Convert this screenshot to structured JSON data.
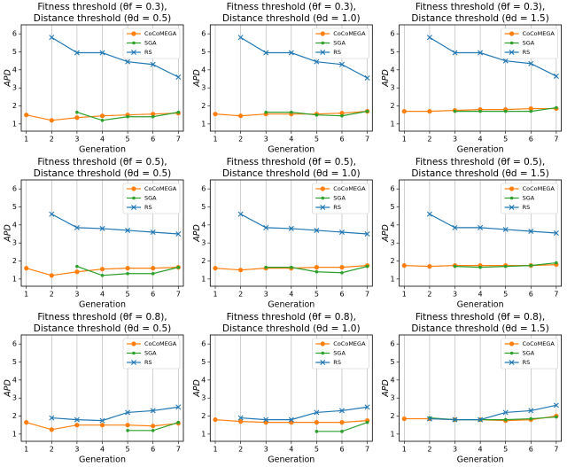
{
  "chart_data": [
    {
      "type": "line",
      "title": "Fitness threshold (θf = 0.3),",
      "subtitle": "Distance threshold (θd = 0.5)",
      "xlabel": "Generation",
      "ylabel": "APD",
      "x": [
        1,
        2,
        3,
        4,
        5,
        6,
        7
      ],
      "xlim": [
        0.8,
        7.2
      ],
      "xticks": [
        1,
        2,
        3,
        4,
        5,
        6,
        7
      ],
      "ylim": [
        0.6,
        6.5
      ],
      "yticks": [
        1,
        2,
        3,
        4,
        5,
        6
      ],
      "grid": "x",
      "legend": "upper right",
      "series": [
        {
          "name": "CoCoMEGA",
          "color": "#ff7f0e",
          "marker": "o",
          "values": [
            1.5,
            1.2,
            1.35,
            1.45,
            1.5,
            1.55,
            1.6
          ]
        },
        {
          "name": "SGA",
          "color": "#2ca02c",
          "marker": ".",
          "values": [
            null,
            null,
            1.65,
            1.2,
            1.4,
            1.4,
            1.65
          ]
        },
        {
          "name": "RS",
          "color": "#1f77b4",
          "marker": "x",
          "values": [
            null,
            5.8,
            4.95,
            4.95,
            4.45,
            4.3,
            3.6
          ]
        }
      ]
    },
    {
      "type": "line",
      "title": "Fitness threshold (θf = 0.3),",
      "subtitle": "Distance threshold (θd = 1.0)",
      "xlabel": "Generation",
      "ylabel": "APD",
      "x": [
        1,
        2,
        3,
        4,
        5,
        6,
        7
      ],
      "xlim": [
        0.8,
        7.2
      ],
      "xticks": [
        1,
        2,
        3,
        4,
        5,
        6,
        7
      ],
      "ylim": [
        0.6,
        6.5
      ],
      "yticks": [
        1,
        2,
        3,
        4,
        5,
        6
      ],
      "grid": "x",
      "legend": "upper right",
      "series": [
        {
          "name": "CoCoMEGA",
          "color": "#ff7f0e",
          "marker": "o",
          "values": [
            1.55,
            1.45,
            1.55,
            1.55,
            1.55,
            1.6,
            1.7
          ]
        },
        {
          "name": "SGA",
          "color": "#2ca02c",
          "marker": ".",
          "values": [
            null,
            null,
            1.65,
            1.65,
            1.5,
            1.45,
            1.7
          ]
        },
        {
          "name": "RS",
          "color": "#1f77b4",
          "marker": "x",
          "values": [
            null,
            5.8,
            4.95,
            4.95,
            4.45,
            4.3,
            3.55
          ]
        }
      ]
    },
    {
      "type": "line",
      "title": "Fitness threshold (θf = 0.3),",
      "subtitle": "Distance threshold (θd = 1.5)",
      "xlabel": "Generation",
      "ylabel": "APD",
      "x": [
        1,
        2,
        3,
        4,
        5,
        6,
        7
      ],
      "xlim": [
        0.8,
        7.2
      ],
      "xticks": [
        1,
        2,
        3,
        4,
        5,
        6,
        7
      ],
      "ylim": [
        0.6,
        6.5
      ],
      "yticks": [
        1,
        2,
        3,
        4,
        5,
        6
      ],
      "grid": "x",
      "legend": "upper right",
      "series": [
        {
          "name": "CoCoMEGA",
          "color": "#ff7f0e",
          "marker": "o",
          "values": [
            1.7,
            1.7,
            1.75,
            1.8,
            1.8,
            1.85,
            1.85
          ]
        },
        {
          "name": "SGA",
          "color": "#2ca02c",
          "marker": ".",
          "values": [
            null,
            null,
            1.7,
            1.7,
            1.7,
            1.7,
            1.9
          ]
        },
        {
          "name": "RS",
          "color": "#1f77b4",
          "marker": "x",
          "values": [
            null,
            5.8,
            4.95,
            4.95,
            4.5,
            4.35,
            3.65
          ]
        }
      ]
    },
    {
      "type": "line",
      "title": "Fitness threshold (θf = 0.5),",
      "subtitle": "Distance threshold (θd = 0.5)",
      "xlabel": "Generation",
      "ylabel": "APD",
      "x": [
        1,
        2,
        3,
        4,
        5,
        6,
        7
      ],
      "xlim": [
        0.8,
        7.2
      ],
      "xticks": [
        1,
        2,
        3,
        4,
        5,
        6,
        7
      ],
      "ylim": [
        0.6,
        6.5
      ],
      "yticks": [
        1,
        2,
        3,
        4,
        5,
        6
      ],
      "grid": "x",
      "legend": "upper right",
      "series": [
        {
          "name": "CoCoMEGA",
          "color": "#ff7f0e",
          "marker": "o",
          "values": [
            1.6,
            1.2,
            1.4,
            1.55,
            1.6,
            1.6,
            1.65
          ]
        },
        {
          "name": "SGA",
          "color": "#2ca02c",
          "marker": ".",
          "values": [
            null,
            null,
            1.7,
            1.2,
            1.3,
            1.3,
            1.65
          ]
        },
        {
          "name": "RS",
          "color": "#1f77b4",
          "marker": "x",
          "values": [
            null,
            4.6,
            3.85,
            3.8,
            3.7,
            3.6,
            3.5
          ]
        }
      ]
    },
    {
      "type": "line",
      "title": "Fitness threshold (θf = 0.5),",
      "subtitle": "Distance threshold (θd = 1.0)",
      "xlabel": "Generation",
      "ylabel": "APD",
      "x": [
        1,
        2,
        3,
        4,
        5,
        6,
        7
      ],
      "xlim": [
        0.8,
        7.2
      ],
      "xticks": [
        1,
        2,
        3,
        4,
        5,
        6,
        7
      ],
      "ylim": [
        0.6,
        6.5
      ],
      "yticks": [
        1,
        2,
        3,
        4,
        5,
        6
      ],
      "grid": "x",
      "legend": "upper right",
      "series": [
        {
          "name": "CoCoMEGA",
          "color": "#ff7f0e",
          "marker": "o",
          "values": [
            1.6,
            1.5,
            1.6,
            1.6,
            1.65,
            1.65,
            1.75
          ]
        },
        {
          "name": "SGA",
          "color": "#2ca02c",
          "marker": ".",
          "values": [
            null,
            null,
            1.65,
            1.65,
            1.4,
            1.35,
            1.7
          ]
        },
        {
          "name": "RS",
          "color": "#1f77b4",
          "marker": "x",
          "values": [
            null,
            4.6,
            3.85,
            3.8,
            3.7,
            3.6,
            3.5
          ]
        }
      ]
    },
    {
      "type": "line",
      "title": "Fitness threshold (θf = 0.5),",
      "subtitle": "Distance threshold (θd = 1.5)",
      "xlabel": "Generation",
      "ylabel": "APD",
      "x": [
        1,
        2,
        3,
        4,
        5,
        6,
        7
      ],
      "xlim": [
        0.8,
        7.2
      ],
      "xticks": [
        1,
        2,
        3,
        4,
        5,
        6,
        7
      ],
      "ylim": [
        0.6,
        6.5
      ],
      "yticks": [
        1,
        2,
        3,
        4,
        5,
        6
      ],
      "grid": "x",
      "legend": "upper right",
      "series": [
        {
          "name": "CoCoMEGA",
          "color": "#ff7f0e",
          "marker": "o",
          "values": [
            1.75,
            1.7,
            1.75,
            1.75,
            1.75,
            1.75,
            1.8
          ]
        },
        {
          "name": "SGA",
          "color": "#2ca02c",
          "marker": ".",
          "values": [
            null,
            null,
            1.7,
            1.65,
            1.7,
            1.75,
            1.9
          ]
        },
        {
          "name": "RS",
          "color": "#1f77b4",
          "marker": "x",
          "values": [
            null,
            4.6,
            3.85,
            3.85,
            3.75,
            3.65,
            3.55
          ]
        }
      ]
    },
    {
      "type": "line",
      "title": "Fitness threshold (θf = 0.8),",
      "subtitle": "Distance threshold (θd = 0.5)",
      "xlabel": "Generation",
      "ylabel": "APD",
      "x": [
        1,
        2,
        3,
        4,
        5,
        6,
        7
      ],
      "xlim": [
        0.8,
        7.2
      ],
      "xticks": [
        1,
        2,
        3,
        4,
        5,
        6,
        7
      ],
      "ylim": [
        0.6,
        6.5
      ],
      "yticks": [
        1,
        2,
        3,
        4,
        5,
        6
      ],
      "grid": "x",
      "legend": "upper right",
      "series": [
        {
          "name": "CoCoMEGA",
          "color": "#ff7f0e",
          "marker": "o",
          "values": [
            1.65,
            1.25,
            1.5,
            1.5,
            1.5,
            1.45,
            1.6
          ]
        },
        {
          "name": "SGA",
          "color": "#2ca02c",
          "marker": ".",
          "values": [
            null,
            null,
            null,
            null,
            1.2,
            1.2,
            1.65
          ]
        },
        {
          "name": "RS",
          "color": "#1f77b4",
          "marker": "x",
          "values": [
            null,
            1.9,
            1.8,
            1.75,
            2.2,
            2.3,
            2.5
          ]
        }
      ]
    },
    {
      "type": "line",
      "title": "Fitness threshold (θf = 0.8),",
      "subtitle": "Distance threshold (θd = 1.0)",
      "xlabel": "Generation",
      "ylabel": "APD",
      "x": [
        1,
        2,
        3,
        4,
        5,
        6,
        7
      ],
      "xlim": [
        0.8,
        7.2
      ],
      "xticks": [
        1,
        2,
        3,
        4,
        5,
        6,
        7
      ],
      "ylim": [
        0.6,
        6.5
      ],
      "yticks": [
        1,
        2,
        3,
        4,
        5,
        6
      ],
      "grid": "x",
      "legend": "upper right",
      "series": [
        {
          "name": "CoCoMEGA",
          "color": "#ff7f0e",
          "marker": "o",
          "values": [
            1.8,
            1.7,
            1.65,
            1.65,
            1.65,
            1.65,
            1.75
          ]
        },
        {
          "name": "SGA",
          "color": "#2ca02c",
          "marker": ".",
          "values": [
            null,
            null,
            null,
            null,
            1.15,
            1.15,
            1.65
          ]
        },
        {
          "name": "RS",
          "color": "#1f77b4",
          "marker": "x",
          "values": [
            null,
            1.9,
            1.8,
            1.8,
            2.2,
            2.3,
            2.5
          ]
        }
      ]
    },
    {
      "type": "line",
      "title": "Fitness threshold (θf = 0.8),",
      "subtitle": "Distance threshold (θd = 1.5)",
      "xlabel": "Generation",
      "ylabel": "APD",
      "x": [
        1,
        2,
        3,
        4,
        5,
        6,
        7
      ],
      "xlim": [
        0.8,
        7.2
      ],
      "xticks": [
        1,
        2,
        3,
        4,
        5,
        6,
        7
      ],
      "ylim": [
        0.6,
        6.5
      ],
      "yticks": [
        1,
        2,
        3,
        4,
        5,
        6
      ],
      "grid": "x",
      "legend": "upper right",
      "series": [
        {
          "name": "CoCoMEGA",
          "color": "#ff7f0e",
          "marker": "o",
          "values": [
            1.85,
            1.85,
            1.8,
            1.8,
            1.75,
            1.8,
            2.0
          ]
        },
        {
          "name": "SGA",
          "color": "#2ca02c",
          "marker": ".",
          "values": [
            null,
            1.9,
            1.8,
            1.8,
            1.8,
            1.85,
            1.95
          ]
        },
        {
          "name": "RS",
          "color": "#1f77b4",
          "marker": "x",
          "values": [
            null,
            1.85,
            1.8,
            1.8,
            2.2,
            2.3,
            2.6
          ]
        }
      ]
    }
  ]
}
